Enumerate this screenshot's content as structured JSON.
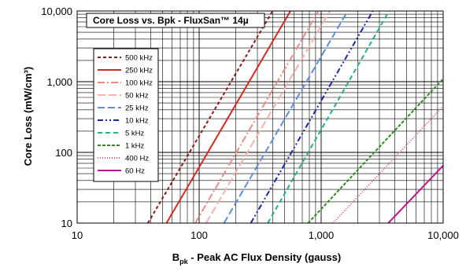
{
  "chart_data": {
    "type": "line",
    "title": "Core Loss vs. Bpk - FluxSan™ 14µ",
    "xlabel_main": "B",
    "xlabel_sub": "pk",
    "xlabel_rest": " - Peak AC Flux Density (gauss)",
    "ylabel": "Core Loss (mW/cm³)",
    "x_scale": "log",
    "y_scale": "log",
    "xlim": [
      10,
      10000
    ],
    "ylim": [
      10,
      10000
    ],
    "x_ticks": [
      10,
      100,
      1000,
      10000
    ],
    "x_tick_labels": [
      "10",
      "100",
      "1,000",
      "10,000"
    ],
    "y_ticks": [
      10,
      100,
      1000,
      10000
    ],
    "y_tick_labels": [
      "10",
      "100",
      "1,000",
      "10,000"
    ],
    "grid": true,
    "legend_position": "left",
    "series": [
      {
        "name": "500 kHz",
        "color": "#8b1a1a",
        "dash": "4,3",
        "x": [
          38,
          400
        ],
        "y": [
          10,
          10000
        ]
      },
      {
        "name": "250 kHz",
        "color": "#d42a1f",
        "dash": "",
        "x": [
          54,
          560
        ],
        "y": [
          10,
          10000
        ]
      },
      {
        "name": "100 kHz",
        "color": "#f08a80",
        "dash": "9,3,2,3",
        "x": [
          93,
          950
        ],
        "y": [
          10,
          10000
        ]
      },
      {
        "name": "50 kHz",
        "color": "#f6b2aa",
        "dash": "10,4",
        "x": [
          114,
          1180
        ],
        "y": [
          10,
          10000
        ]
      },
      {
        "name": "25 kHz",
        "color": "#5b8fde",
        "dash": "9,4",
        "x": [
          160,
          1650
        ],
        "y": [
          10,
          10000
        ]
      },
      {
        "name": "10 kHz",
        "color": "#1a27a8",
        "dash": "7,3,2,3,2,3",
        "x": [
          265,
          2650
        ],
        "y": [
          10,
          10000
        ]
      },
      {
        "name": "5 kHz",
        "color": "#22b573",
        "dash": "6,4",
        "x": [
          365,
          3600
        ],
        "y": [
          10,
          10000
        ]
      },
      {
        "name": "1 kHz",
        "color": "#2e8b1e",
        "dash": "4,2",
        "x": [
          780,
          10000
        ],
        "y": [
          10,
          1100
        ]
      },
      {
        "name": "400 Hz",
        "color": "#e0559b",
        "dash": "1,2",
        "x": [
          1250,
          10000
        ],
        "y": [
          10,
          450
        ]
      },
      {
        "name": "60 Hz",
        "color": "#c0158a",
        "dash": "",
        "x": [
          3550,
          10000
        ],
        "y": [
          10,
          65
        ]
      }
    ]
  }
}
